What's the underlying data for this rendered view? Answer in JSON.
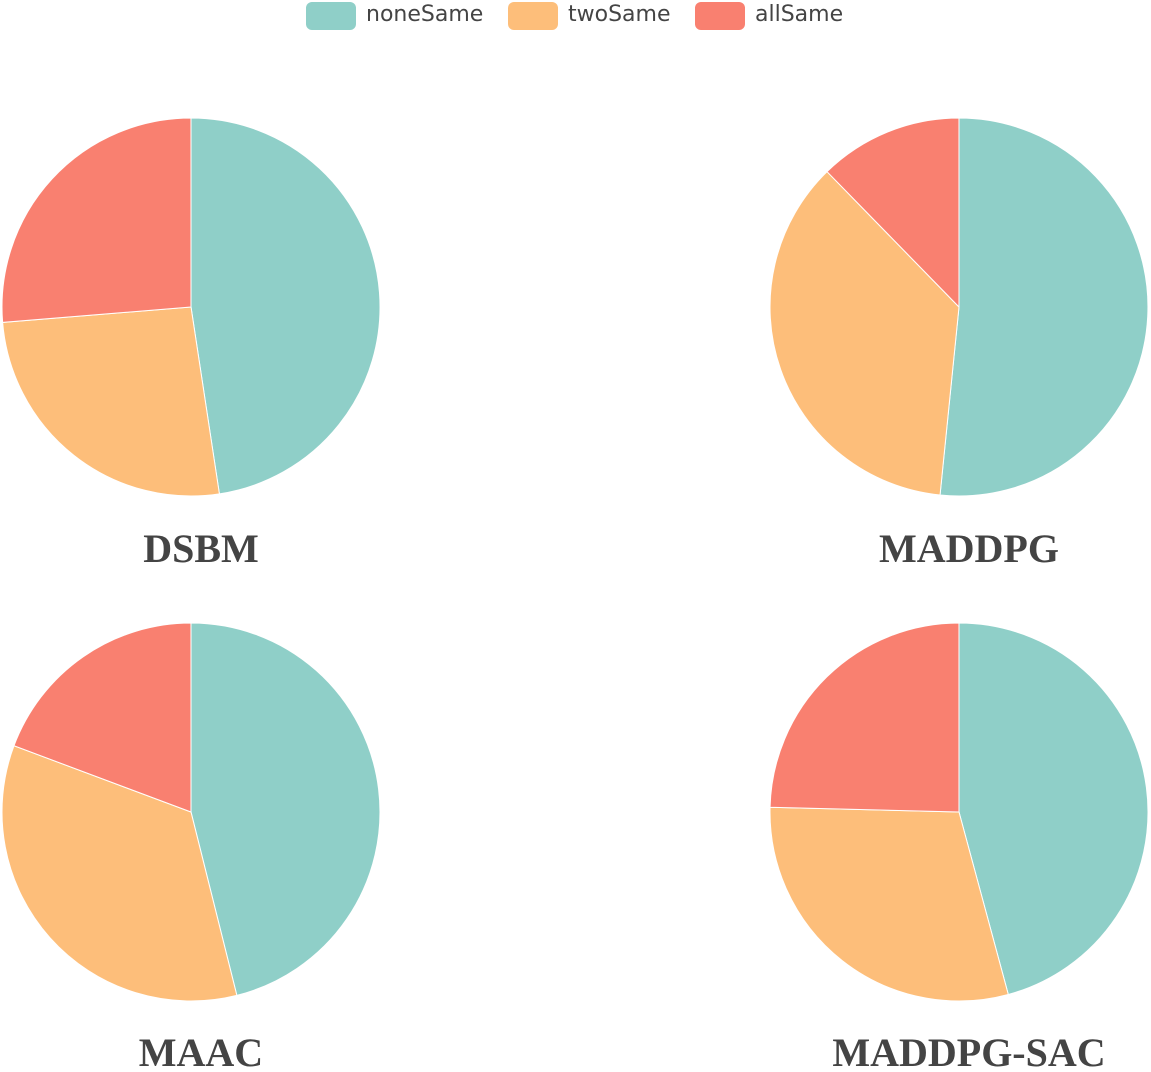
{
  "legend": {
    "items": [
      {
        "label": "noneSame",
        "color": "#8fcfc8"
      },
      {
        "label": "twoSame",
        "color": "#fdbe7a"
      },
      {
        "label": "allSame",
        "color": "#f98070"
      }
    ]
  },
  "chart_data": [
    {
      "type": "pie",
      "title": "DSBM",
      "categories": [
        "noneSame",
        "twoSame",
        "allSame"
      ],
      "values": [
        47.6,
        26.1,
        26.3
      ],
      "start_angle_deg": 0,
      "direction": "clockwise"
    },
    {
      "type": "pie",
      "title": "MADDPG",
      "categories": [
        "noneSame",
        "twoSame",
        "allSame"
      ],
      "values": [
        51.6,
        36.1,
        12.3
      ],
      "start_angle_deg": 0,
      "direction": "clockwise"
    },
    {
      "type": "pie",
      "title": "MAAC",
      "categories": [
        "noneSame",
        "twoSame",
        "allSame"
      ],
      "values": [
        46.1,
        34.6,
        19.3
      ],
      "start_angle_deg": 0,
      "direction": "clockwise"
    },
    {
      "type": "pie",
      "title": "MADDPG-SAC",
      "categories": [
        "noneSame",
        "twoSame",
        "allSame"
      ],
      "values": [
        45.8,
        29.6,
        24.6
      ],
      "start_angle_deg": 0,
      "direction": "clockwise"
    }
  ]
}
